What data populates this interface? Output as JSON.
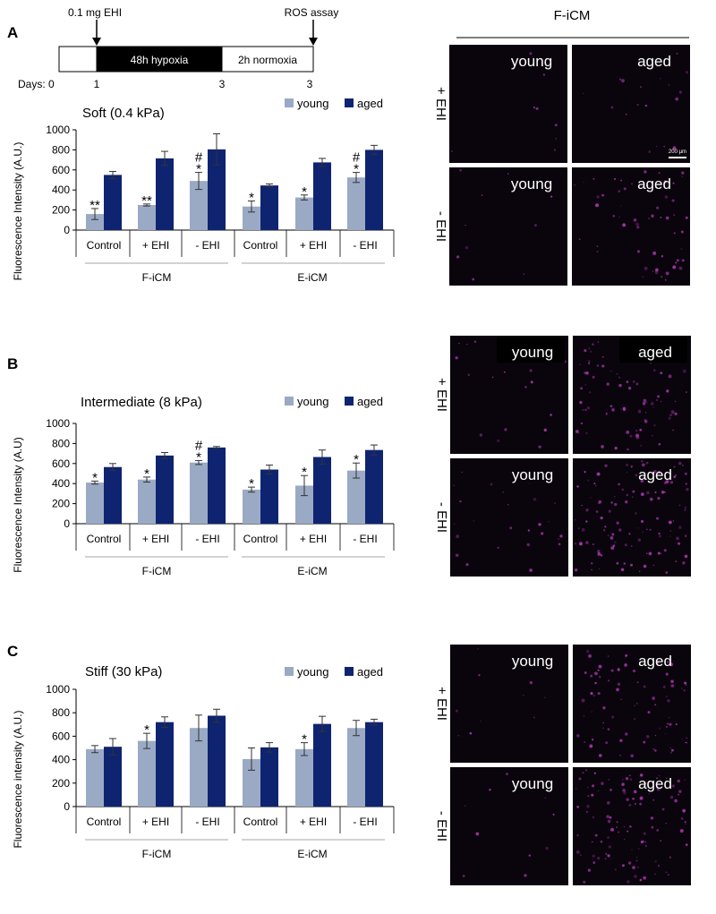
{
  "panel_letters": [
    "A",
    "B",
    "C"
  ],
  "timeline": {
    "dose_label": "0.1 mg EHI",
    "assay_label": "ROS assay",
    "hypoxia_label": "48h hypoxia",
    "normoxia_label": "2h normoxia",
    "days_label": "Days: 0",
    "day_ticks": [
      "1",
      "3",
      "3"
    ]
  },
  "micrograph": {
    "header": "F-iCM",
    "row_labels": [
      "+ EHI",
      "- EHI"
    ],
    "young_label": "young",
    "aged_label": "aged",
    "scale_bar_label": "200 µm"
  },
  "chart_data": [
    {
      "type": "bar",
      "title": "Soft (0.4 kPa)",
      "ylabel": "Fluorescence Intensity (A.U.)",
      "ylim": [
        0,
        1000
      ],
      "yticks": [
        "0",
        "200",
        "400",
        "600",
        "800",
        "1000"
      ],
      "categories": [
        "Control",
        "+ EHI",
        "- EHI",
        "Control",
        "+ EHI",
        "- EHI"
      ],
      "groups": [
        "F-iCM",
        "E-iCM"
      ],
      "series": [
        {
          "name": "young",
          "color": "#9aaac4",
          "values": [
            160,
            250,
            490,
            235,
            325,
            525
          ],
          "errors": [
            55,
            10,
            85,
            55,
            25,
            50
          ]
        },
        {
          "name": "aged",
          "color": "#0e2470",
          "values": [
            550,
            715,
            805,
            445,
            675,
            800
          ],
          "errors": [
            35,
            70,
            155,
            15,
            40,
            45
          ]
        }
      ],
      "annotations": [
        "**",
        "**",
        "*",
        "#",
        "*",
        "*",
        "*",
        "#"
      ]
    },
    {
      "type": "bar",
      "title": "Intermediate (8 kPa)",
      "ylabel": "Fluorescence Intensity (A.U)",
      "ylim": [
        0,
        1000
      ],
      "yticks": [
        "0",
        "200",
        "400",
        "600",
        "800",
        "1000"
      ],
      "categories": [
        "Control",
        "+ EHI",
        "- EHI",
        "Control",
        "+ EHI",
        "- EHI"
      ],
      "groups": [
        "F-iCM",
        "E-iCM"
      ],
      "series": [
        {
          "name": "young",
          "color": "#9aaac4",
          "values": [
            410,
            440,
            610,
            340,
            380,
            530
          ],
          "errors": [
            15,
            25,
            20,
            25,
            100,
            75
          ]
        },
        {
          "name": "aged",
          "color": "#0e2470",
          "values": [
            565,
            680,
            760,
            540,
            665,
            735
          ],
          "errors": [
            35,
            30,
            10,
            45,
            70,
            50
          ]
        }
      ],
      "annotations": [
        "*",
        "*",
        "*",
        "#",
        "*",
        "*",
        "*"
      ]
    },
    {
      "type": "bar",
      "title": "Stiff (30 kPa)",
      "ylabel": "Fluorescence intensity (A.U.)",
      "ylim": [
        0,
        1000
      ],
      "yticks": [
        "0",
        "200",
        "400",
        "600",
        "800",
        "1000"
      ],
      "categories": [
        "Control",
        "+ EHI",
        "- EHI",
        "Control",
        "+ EHI",
        "- EHI"
      ],
      "groups": [
        "F-iCM",
        "E-iCM"
      ],
      "series": [
        {
          "name": "young",
          "color": "#9aaac4",
          "values": [
            490,
            560,
            670,
            405,
            490,
            670
          ],
          "errors": [
            30,
            65,
            110,
            95,
            55,
            65
          ]
        },
        {
          "name": "aged",
          "color": "#0e2470",
          "values": [
            510,
            720,
            775,
            505,
            705,
            720
          ],
          "errors": [
            70,
            45,
            55,
            40,
            65,
            25
          ]
        }
      ],
      "annotations": [
        "*",
        "*"
      ]
    }
  ]
}
